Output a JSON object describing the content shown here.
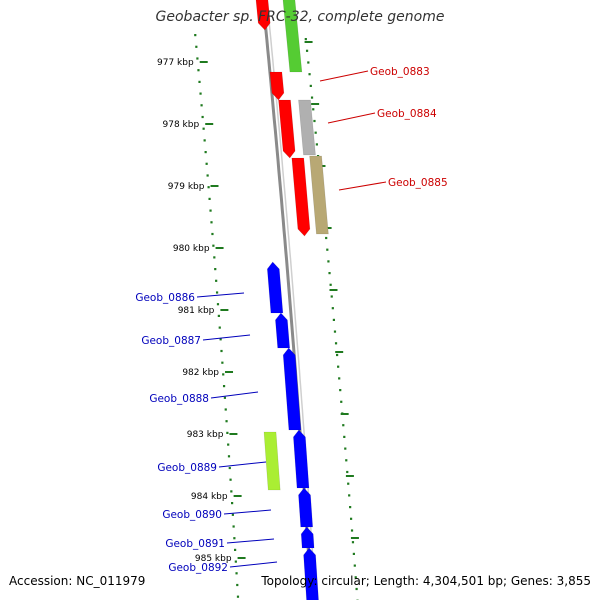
{
  "title": "Geobacter sp. FRC-32, complete genome",
  "accession": "Accession: NC_011979",
  "stats": "Topology: circular; Length: 4,304,501 bp; Genes: 3,855",
  "colors": {
    "forward_label": "#cc0000",
    "reverse_label": "#0000bb",
    "backbone": "#8a8a8a",
    "ticks": "#1f7a1f",
    "gene_red": "#ff0000",
    "gene_blue": "#0000ff",
    "gene_green": "#55cc33",
    "gene_grey": "#b0b0b0",
    "gene_khaki": "#b8a874",
    "gene_lime": "#aaee33"
  },
  "ruler_ticks": [
    {
      "label": "977 kbp"
    },
    {
      "label": "978 kbp"
    },
    {
      "label": "979 kbp"
    },
    {
      "label": "980 kbp"
    },
    {
      "label": "981 kbp"
    },
    {
      "label": "982 kbp"
    },
    {
      "label": "983 kbp"
    },
    {
      "label": "984 kbp"
    },
    {
      "label": "985 kbp"
    }
  ],
  "gene_labels": [
    {
      "name": "Geob_0883",
      "strand": "forward"
    },
    {
      "name": "Geob_0884",
      "strand": "forward"
    },
    {
      "name": "Geob_0885",
      "strand": "forward"
    },
    {
      "name": "Geob_0886",
      "strand": "reverse"
    },
    {
      "name": "Geob_0887",
      "strand": "reverse"
    },
    {
      "name": "Geob_0888",
      "strand": "reverse"
    },
    {
      "name": "Geob_0889",
      "strand": "reverse"
    },
    {
      "name": "Geob_0890",
      "strand": "reverse"
    },
    {
      "name": "Geob_0891",
      "strand": "reverse"
    },
    {
      "name": "Geob_0892",
      "strand": "reverse"
    }
  ]
}
